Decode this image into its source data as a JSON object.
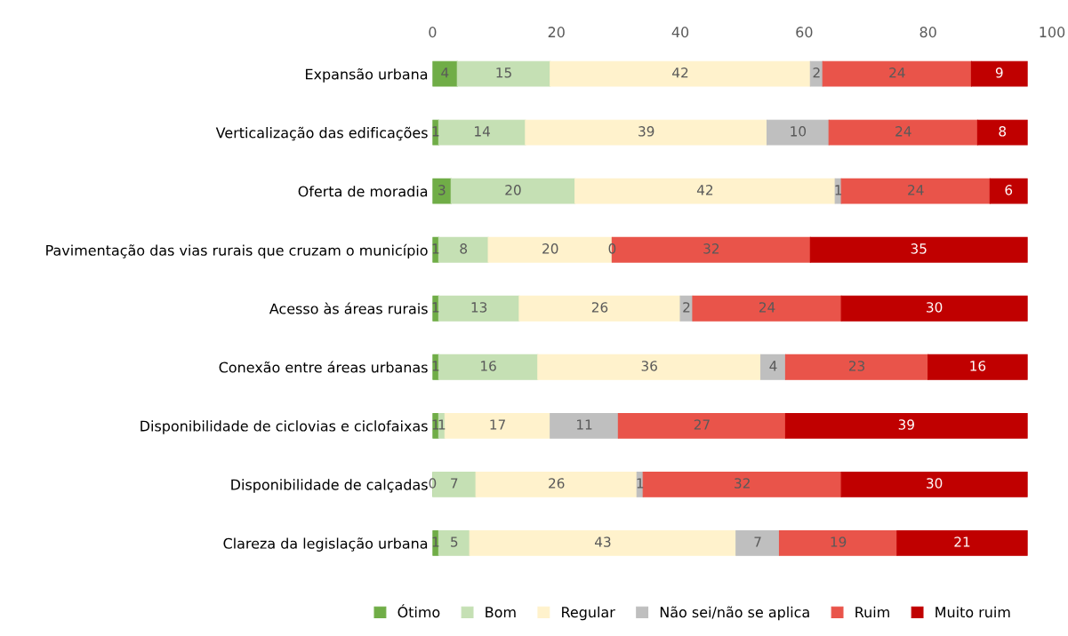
{
  "chart_data": {
    "type": "bar",
    "orientation": "horizontal",
    "stacked": true,
    "legend": "bottom",
    "grid": false,
    "categories": [
      "Expansão urbana",
      "Verticalização das edificações",
      "Oferta de moradia",
      "Pavimentação das vias rurais que cruzam o município",
      "Acesso às áreas rurais",
      "Conexão entre áreas urbanas",
      "Disponibilidade de ciclovias e ciclofaixas",
      "Disponibilidade de calçadas",
      "Clareza da legislação urbana"
    ],
    "xlim": [
      0,
      100
    ],
    "xticks": [
      0,
      20,
      40,
      60,
      80,
      100
    ],
    "series": [
      {
        "name": "Ótimo",
        "color": "#70ad47",
        "values": [
          4,
          1,
          3,
          1,
          1,
          1,
          1,
          0,
          1
        ],
        "value_labels": [
          "4",
          "1",
          "3",
          "1",
          "1",
          "1",
          "1",
          "0",
          "1"
        ]
      },
      {
        "name": "Bom",
        "color": "#c5e0b4",
        "values": [
          15,
          14,
          20,
          8,
          13,
          16,
          1,
          7,
          5
        ],
        "value_labels": [
          "15",
          "14",
          "20",
          "8",
          "13",
          "16",
          "1",
          "7",
          "5"
        ]
      },
      {
        "name": "Regular",
        "color": "#fff2cc",
        "values": [
          42,
          39,
          42,
          20,
          26,
          36,
          17,
          26,
          43
        ],
        "value_labels": [
          "42",
          "39",
          "42",
          "20",
          "26",
          "36",
          "17",
          "26",
          "43"
        ]
      },
      {
        "name": "Não sei/não se aplica",
        "color": "#bfbfbf",
        "values": [
          2,
          10,
          1,
          0,
          2,
          4,
          11,
          1,
          7
        ],
        "value_labels": [
          "2",
          "10",
          "1",
          "0",
          "2",
          "4",
          "11",
          "1",
          "7"
        ]
      },
      {
        "name": "Ruim",
        "color": "#e9544a",
        "values": [
          24,
          24,
          24,
          32,
          24,
          23,
          27,
          32,
          19
        ],
        "value_labels": [
          "24",
          "24",
          "24",
          "32",
          "24",
          "23",
          "27",
          "32",
          "19"
        ]
      },
      {
        "name": "Muito ruim",
        "color": "#c00000",
        "values": [
          9,
          8,
          6,
          35,
          30,
          16,
          39,
          30,
          21
        ],
        "value_labels": [
          "9",
          "8",
          "6",
          "35",
          "30",
          "16",
          "39",
          "30",
          "21"
        ]
      }
    ]
  }
}
